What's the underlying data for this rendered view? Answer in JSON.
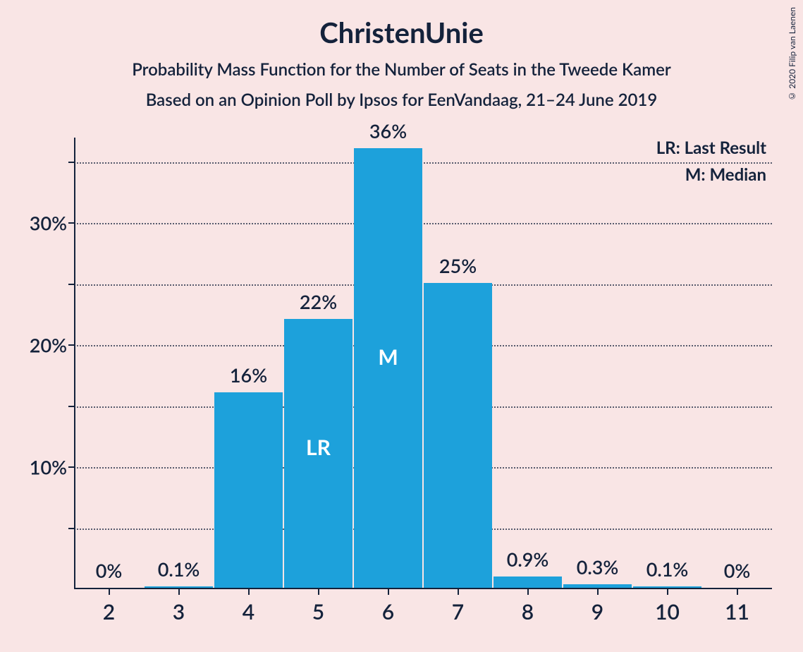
{
  "title": "ChristenUnie",
  "subtitle1": "Probability Mass Function for the Number of Seats in the Tweede Kamer",
  "subtitle2": "Based on an Opinion Poll by Ipsos for EenVandaag, 21–24 June 2019",
  "copyright": "© 2020 Filip van Laenen",
  "chart": {
    "type": "bar",
    "background_color": "#f9e5e5",
    "bar_color": "#1da1db",
    "text_color": "#14223b",
    "inner_label_color": "#ffffff",
    "grid_style": "dotted",
    "title_fontsize": 40,
    "subtitle_fontsize": 24,
    "axis_label_fontsize": 27,
    "xaxis_label_fontsize": 30,
    "bar_label_fontsize": 27,
    "inner_label_fontsize": 30,
    "bar_width_ratio": 0.97,
    "ylim": [
      0,
      37
    ],
    "yticks": [
      5,
      10,
      15,
      20,
      25,
      30,
      35
    ],
    "ytick_labels": [
      "",
      "10%",
      "",
      "20%",
      "",
      "30%",
      ""
    ],
    "categories": [
      "2",
      "3",
      "4",
      "5",
      "6",
      "7",
      "8",
      "9",
      "10",
      "11"
    ],
    "values": [
      0,
      0.1,
      16,
      22,
      36,
      25,
      0.9,
      0.3,
      0.1,
      0
    ],
    "value_labels": [
      "0%",
      "0.1%",
      "16%",
      "22%",
      "36%",
      "25%",
      "0.9%",
      "0.3%",
      "0.1%",
      "0%"
    ],
    "inner_labels": {
      "5": "LR",
      "6": "M"
    },
    "legend": {
      "lr": "LR: Last Result",
      "m": "M: Median"
    }
  }
}
